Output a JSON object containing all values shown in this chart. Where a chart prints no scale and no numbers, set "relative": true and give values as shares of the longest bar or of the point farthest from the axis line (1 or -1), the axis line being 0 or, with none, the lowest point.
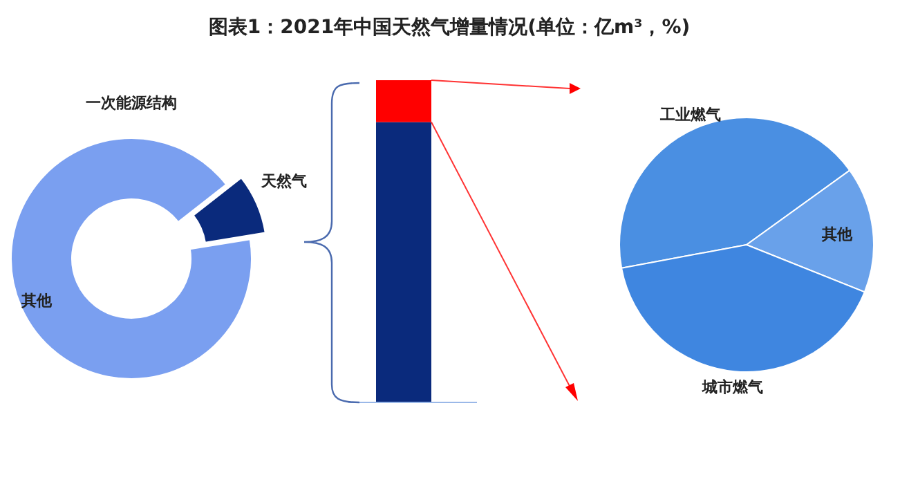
{
  "chart_data": [
    {
      "type": "donut",
      "title": "图表1：2021年中国天然气增量情况(单位：亿m³，%)",
      "subtitle": "一次能源结构",
      "categories": [
        "其他",
        "天然气"
      ],
      "values": [
        92,
        8
      ],
      "colors": [
        "#7a9ff0",
        "#0a2a7c"
      ]
    },
    {
      "type": "bar",
      "stacked": true,
      "relative": true,
      "categories": [
        null
      ],
      "series": [
        {
          "color": "#0a2a7c",
          "values": [
            0.87
          ]
        },
        {
          "color": "#ff0000",
          "values": [
            0.13
          ]
        }
      ]
    },
    {
      "type": "pie",
      "categories": [
        "工业燃气",
        "其他",
        "城市燃气"
      ],
      "values": [
        43,
        16,
        41
      ],
      "colors": [
        "#4a8fe2",
        "#69a1ea",
        "#3f86e0"
      ]
    }
  ]
}
